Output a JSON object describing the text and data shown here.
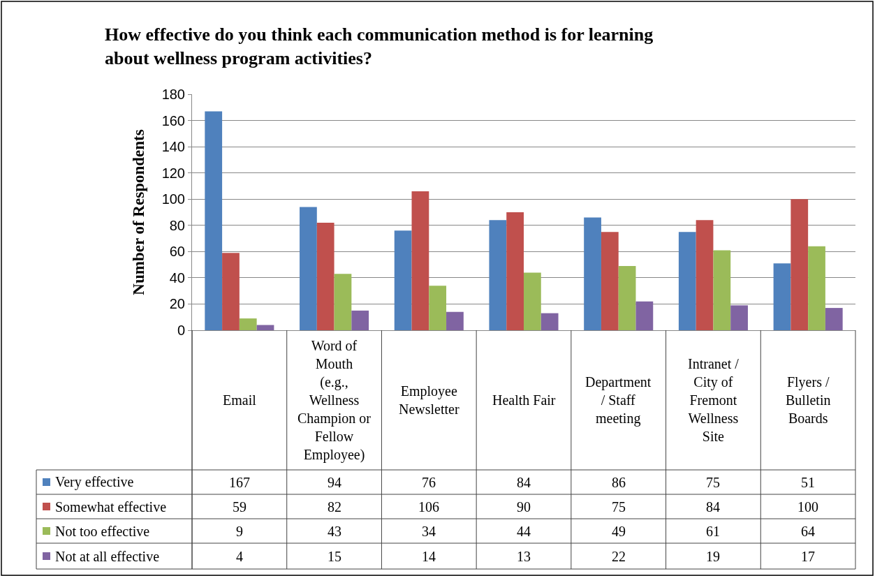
{
  "chart_data": {
    "type": "bar",
    "title": "How effective do you think each communication method is for learning about wellness program activities?",
    "ylabel": "Number of Respondents",
    "categories": [
      "Email",
      "Word of Mouth (e.g., Wellness Champion or Fellow Employee)",
      "Employee Newsletter",
      "Health Fair",
      "Department / Staff meeting",
      "Intranet / City of Fremont Wellness Site",
      "Flyers / Bulletin Boards"
    ],
    "series": [
      {
        "name": "Very effective",
        "color": "#4f81bd",
        "values": [
          167,
          94,
          76,
          84,
          86,
          75,
          51
        ]
      },
      {
        "name": "Somewhat effective",
        "color": "#c0504d",
        "values": [
          59,
          82,
          106,
          90,
          75,
          84,
          100
        ]
      },
      {
        "name": "Not too effective",
        "color": "#9bbb59",
        "values": [
          9,
          43,
          34,
          44,
          49,
          61,
          64
        ]
      },
      {
        "name": "Not at all effective",
        "color": "#8064a2",
        "values": [
          4,
          15,
          14,
          13,
          22,
          19,
          17
        ]
      }
    ],
    "ylim": [
      0,
      180
    ],
    "yticks": [
      0,
      20,
      40,
      60,
      80,
      100,
      120,
      140,
      160,
      180
    ],
    "grid": "y",
    "legend": "bottom left",
    "data_labels": true
  }
}
